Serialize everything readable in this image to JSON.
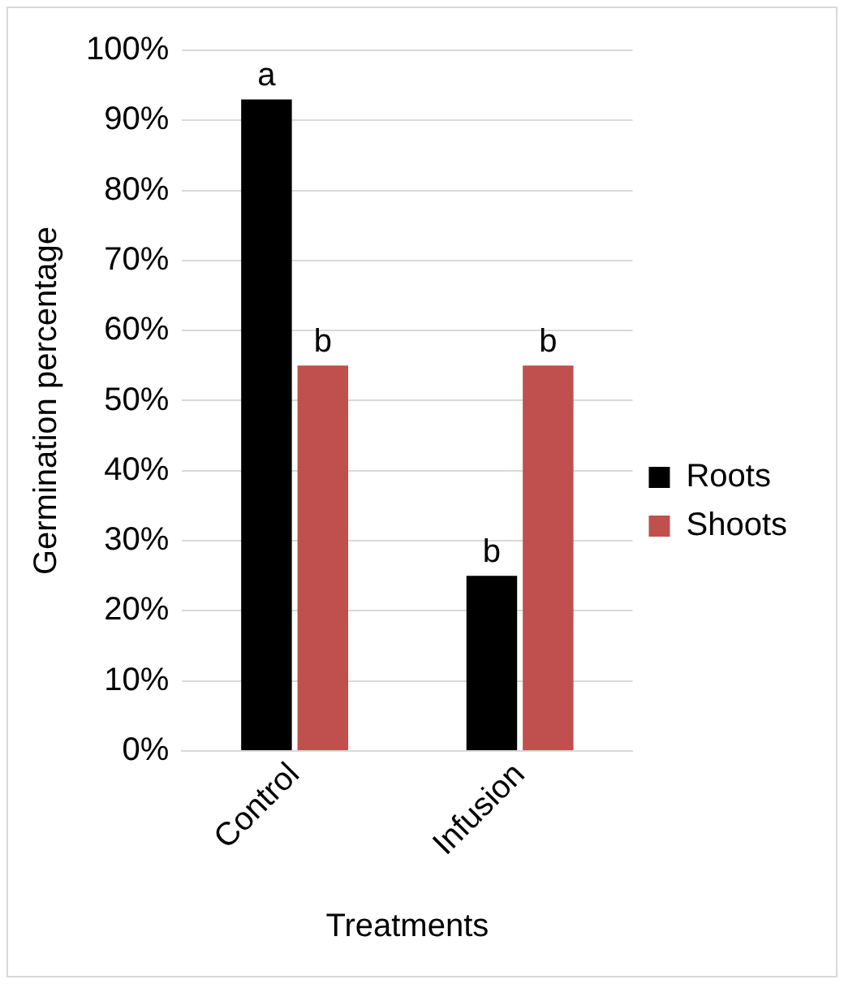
{
  "chart_data": {
    "type": "bar",
    "xlabel": "Treatments",
    "ylabel": "Germination percentage",
    "categories": [
      "Control",
      "Infusion"
    ],
    "series": [
      {
        "name": "Roots",
        "color": "#000000",
        "values": [
          93,
          25
        ],
        "value_labels": [
          "a",
          "b"
        ]
      },
      {
        "name": "Shoots",
        "color": "#c0504d",
        "values": [
          55,
          55
        ],
        "value_labels": [
          "b",
          "b"
        ]
      }
    ],
    "ylim": [
      0,
      100
    ],
    "yticks": [
      {
        "value": 0,
        "label": "0%"
      },
      {
        "value": 10,
        "label": "10%"
      },
      {
        "value": 20,
        "label": "20%"
      },
      {
        "value": 30,
        "label": "30%"
      },
      {
        "value": 40,
        "label": "40%"
      },
      {
        "value": 50,
        "label": "50%"
      },
      {
        "value": 60,
        "label": "60%"
      },
      {
        "value": 70,
        "label": "70%"
      },
      {
        "value": 80,
        "label": "80%"
      },
      {
        "value": 90,
        "label": "90%"
      },
      {
        "value": 100,
        "label": "100%"
      }
    ],
    "grid": "y",
    "legend": "right"
  }
}
